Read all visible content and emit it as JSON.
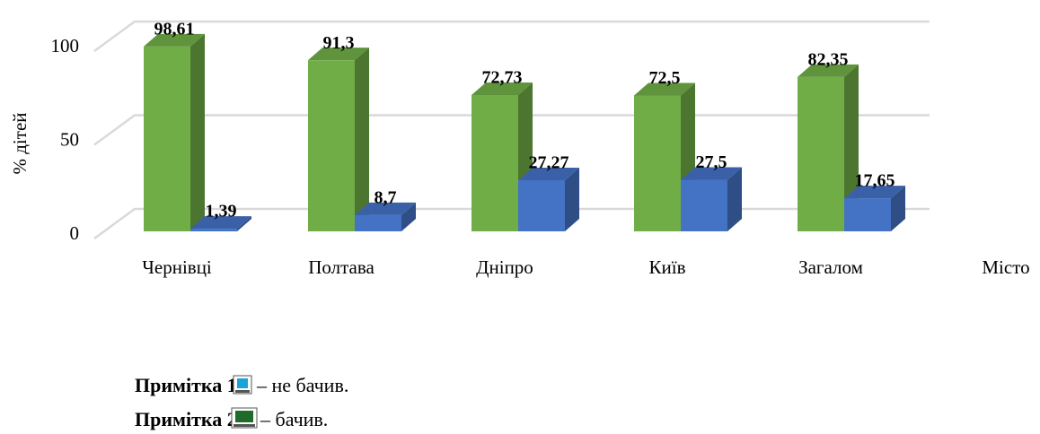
{
  "chart_data": {
    "type": "bar3d",
    "categories": [
      "Чернівці",
      "Полтава",
      "Дніпро",
      "Київ",
      "Загалом"
    ],
    "series": [
      {
        "color": "#70ad47",
        "values": [
          98.61,
          91.3,
          72.73,
          72.5,
          82.35
        ],
        "value_labels": [
          "98,61",
          "91,3",
          "72,73",
          "72,5",
          "82,35"
        ]
      },
      {
        "color": "#4472c4",
        "values": [
          1.39,
          8.7,
          27.27,
          27.5,
          17.65
        ],
        "value_labels": [
          "1,39",
          "8,7",
          "27,27",
          "27,5",
          "17,65"
        ]
      }
    ],
    "ylabel": "% дітей",
    "xlabel": "Місто",
    "ylim": [
      0,
      100
    ],
    "yticks": [
      0,
      50,
      100
    ],
    "grid": true
  },
  "notes": [
    {
      "label": "Примітка 1.",
      "text": "– не бачив.",
      "color": "#1aa3d9"
    },
    {
      "label": "Примітка 2.",
      "text": "– бачив.",
      "color": "#1e6b2a"
    }
  ]
}
